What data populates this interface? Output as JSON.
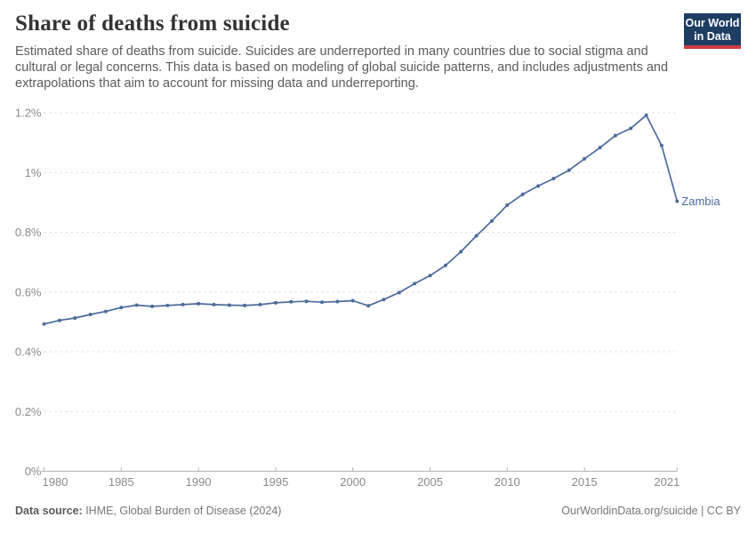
{
  "header": {
    "title": "Share of deaths from suicide",
    "subtitle": "Estimated share of deaths from suicide. Suicides are underreported in many countries due to social stigma and cultural or legal concerns. This data is based on modeling of global suicide patterns, and includes adjustments and extrapolations that aim to account for missing data and underreporting.",
    "logo": {
      "line1": "Our World",
      "line2": "in Data",
      "bg_color": "#1d3d63",
      "accent_color": "#d23a42"
    }
  },
  "chart_data": {
    "type": "line",
    "title": "Share of deaths from suicide",
    "entity_label": "Zambia",
    "unit": "%",
    "x": [
      1980,
      1981,
      1982,
      1983,
      1984,
      1985,
      1986,
      1987,
      1988,
      1989,
      1990,
      1991,
      1992,
      1993,
      1994,
      1995,
      1996,
      1997,
      1998,
      1999,
      2000,
      2001,
      2002,
      2003,
      2004,
      2005,
      2006,
      2007,
      2008,
      2009,
      2010,
      2011,
      2012,
      2013,
      2014,
      2015,
      2016,
      2017,
      2018,
      2019,
      2020,
      2021
    ],
    "values": [
      0.493,
      0.505,
      0.513,
      0.525,
      0.535,
      0.548,
      0.556,
      0.552,
      0.555,
      0.558,
      0.561,
      0.558,
      0.556,
      0.555,
      0.558,
      0.564,
      0.567,
      0.569,
      0.566,
      0.568,
      0.571,
      0.554,
      0.575,
      0.598,
      0.628,
      0.655,
      0.689,
      0.735,
      0.788,
      0.838,
      0.891,
      0.927,
      0.955,
      0.98,
      1.008,
      1.046,
      1.083,
      1.124,
      1.148,
      1.192,
      1.091,
      0.904
    ],
    "xlim": [
      1980,
      2021
    ],
    "ylim": [
      0,
      1.2
    ],
    "x_ticks": [
      1980,
      1985,
      1990,
      1995,
      2000,
      2005,
      2010,
      2015,
      2021
    ],
    "y_ticks": [
      0,
      0.2,
      0.4,
      0.6,
      0.8,
      1,
      1.2
    ],
    "y_tick_labels": [
      "0%",
      "0.2%",
      "0.4%",
      "0.6%",
      "0.8%",
      "1%",
      "1.2%"
    ],
    "grid": "horizontal dashed",
    "legend_position": "end-of-line label",
    "line_color": "#4c6a9c",
    "grid_color": "#d9d9d9",
    "axis_color": "#b3b3b3",
    "tick_label_color": "#8a8a8a"
  },
  "footer": {
    "source_label": "Data source:",
    "source_value": " IHME, Global Burden of Disease (2024)",
    "credit": "OurWorldinData.org/suicide | CC BY"
  }
}
